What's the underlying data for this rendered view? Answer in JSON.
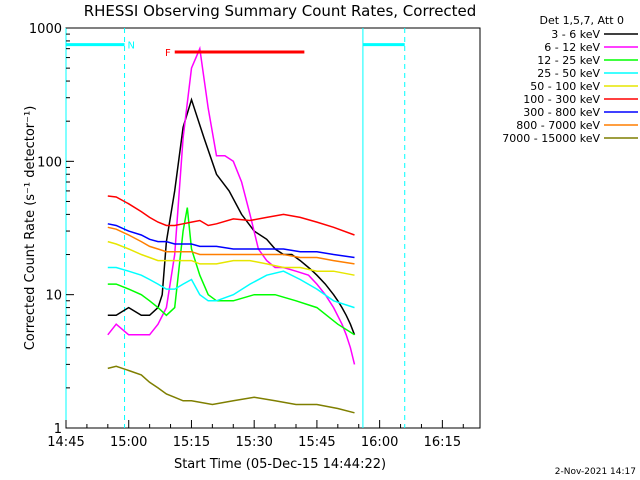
{
  "chart_data": {
    "type": "line",
    "title": "RHESSI Observing Summary Count Rates, Corrected",
    "xlabel": "Start Time (05-Dec-15 14:44:22)",
    "ylabel": "Corrected Count Rate (s⁻¹ detector⁻¹)",
    "yscale": "log",
    "ylim": [
      1,
      1000
    ],
    "xlim_minutes_after_1445": [
      0,
      99
    ],
    "x_tick_labels": [
      "14:45",
      "15:00",
      "15:15",
      "15:30",
      "15:45",
      "16:00",
      "16:15"
    ],
    "y_tick_labels": [
      "1",
      "10",
      "100",
      "1000"
    ],
    "legend_header": "Det 1,5,7, Att 0",
    "series": [
      {
        "name": "3 - 6 keV",
        "color": "#000000",
        "x": [
          10,
          12,
          15,
          18,
          20,
          22,
          23,
          24,
          26,
          28,
          30,
          33,
          36,
          39,
          42,
          45,
          48,
          50,
          52,
          54,
          56,
          58,
          59,
          60,
          62,
          64,
          65,
          66,
          67,
          68,
          69
        ],
        "y": [
          7,
          7,
          8,
          7,
          7,
          8,
          10,
          25,
          60,
          180,
          290,
          150,
          80,
          60,
          40,
          30,
          26,
          22,
          20,
          20,
          18,
          16,
          15,
          14,
          12,
          10,
          9,
          8,
          7,
          6,
          5
        ]
      },
      {
        "name": "6 - 12 keV",
        "color": "#ff00ff",
        "x": [
          10,
          12,
          15,
          18,
          20,
          22,
          24,
          26,
          28,
          30,
          32,
          34,
          36,
          38,
          40,
          42,
          44,
          46,
          48,
          50,
          52,
          55,
          58,
          60,
          62,
          64,
          66,
          67,
          68,
          69
        ],
        "y": [
          5,
          6,
          5,
          5,
          5,
          6,
          8,
          20,
          150,
          500,
          700,
          250,
          110,
          110,
          100,
          70,
          40,
          22,
          18,
          16,
          16,
          15,
          14,
          12,
          10,
          8,
          6,
          5,
          4,
          3
        ]
      },
      {
        "name": "12 - 25 keV",
        "color": "#00ff00",
        "x": [
          10,
          12,
          15,
          18,
          20,
          22,
          24,
          26,
          28,
          29,
          30,
          32,
          34,
          36,
          40,
          45,
          50,
          55,
          60,
          65,
          69
        ],
        "y": [
          12,
          12,
          11,
          10,
          9,
          8,
          7,
          8,
          30,
          45,
          22,
          14,
          10,
          9,
          9,
          10,
          10,
          9,
          8,
          6,
          5
        ]
      },
      {
        "name": "25 - 50 keV",
        "color": "#00ffff",
        "x": [
          10,
          12,
          15,
          18,
          20,
          22,
          24,
          26,
          28,
          30,
          32,
          34,
          36,
          40,
          44,
          48,
          52,
          56,
          60,
          64,
          69
        ],
        "y": [
          16,
          16,
          15,
          14,
          13,
          12,
          11,
          11,
          12,
          13,
          10,
          9,
          9,
          10,
          12,
          14,
          15,
          13,
          11,
          9,
          8
        ]
      },
      {
        "name": "50 - 100 keV",
        "color": "#e6e600",
        "x": [
          10,
          12,
          15,
          18,
          20,
          22,
          24,
          26,
          28,
          30,
          32,
          34,
          36,
          40,
          44,
          48,
          52,
          56,
          60,
          64,
          69
        ],
        "y": [
          25,
          24,
          22,
          20,
          19,
          18,
          18,
          18,
          18,
          18,
          17,
          17,
          17,
          18,
          18,
          17,
          16,
          16,
          15,
          15,
          14
        ]
      },
      {
        "name": "100 - 300 keV",
        "color": "#ff0000",
        "x": [
          10,
          12,
          15,
          18,
          20,
          22,
          24,
          26,
          28,
          30,
          32,
          34,
          36,
          40,
          44,
          48,
          52,
          56,
          60,
          64,
          69
        ],
        "y": [
          55,
          54,
          48,
          42,
          38,
          35,
          33,
          33,
          34,
          35,
          36,
          33,
          34,
          37,
          36,
          38,
          40,
          38,
          35,
          32,
          28
        ]
      },
      {
        "name": "300 - 800 keV",
        "color": "#0000ff",
        "x": [
          10,
          12,
          15,
          18,
          20,
          22,
          24,
          26,
          28,
          30,
          32,
          34,
          36,
          40,
          44,
          48,
          52,
          56,
          60,
          64,
          69
        ],
        "y": [
          34,
          33,
          30,
          28,
          26,
          25,
          25,
          24,
          24,
          24,
          23,
          23,
          23,
          22,
          22,
          22,
          22,
          21,
          21,
          20,
          19
        ]
      },
      {
        "name": "800 - 7000 keV",
        "color": "#ff7f00",
        "x": [
          10,
          12,
          15,
          18,
          20,
          22,
          24,
          26,
          28,
          30,
          32,
          34,
          36,
          40,
          44,
          48,
          52,
          56,
          60,
          64,
          69
        ],
        "y": [
          32,
          31,
          28,
          25,
          23,
          22,
          21,
          21,
          21,
          21,
          20,
          20,
          20,
          20,
          20,
          20,
          20,
          19,
          19,
          18,
          17
        ]
      },
      {
        "name": "7000 - 15000 keV",
        "color": "#7f7f00",
        "x": [
          10,
          12,
          15,
          18,
          20,
          22,
          24,
          26,
          28,
          30,
          35,
          40,
          45,
          50,
          55,
          60,
          65,
          69
        ],
        "y": [
          2.8,
          2.9,
          2.7,
          2.5,
          2.2,
          2.0,
          1.8,
          1.7,
          1.6,
          1.6,
          1.5,
          1.6,
          1.7,
          1.6,
          1.5,
          1.5,
          1.4,
          1.3
        ]
      }
    ],
    "annotations": [
      {
        "label": "N",
        "color": "#00ffff",
        "x_start": 0,
        "x_end": 14,
        "y": 750
      },
      {
        "label": "",
        "color": "#00ffff",
        "x_start": 71,
        "x_end": 81,
        "y": 750
      },
      {
        "label": "F",
        "color": "#ff0000",
        "x_start": 26,
        "x_end": 57,
        "y": 660
      }
    ],
    "vertical_markers": [
      {
        "x": 0,
        "color": "#00ffff",
        "style": "solid"
      },
      {
        "x": 14,
        "color": "#00ffff",
        "style": "dashed"
      },
      {
        "x": 71,
        "color": "#00ffff",
        "style": "solid"
      },
      {
        "x": 81,
        "color": "#00ffff",
        "style": "dashed"
      }
    ]
  },
  "footer_timestamp": "2-Nov-2021 14:17"
}
